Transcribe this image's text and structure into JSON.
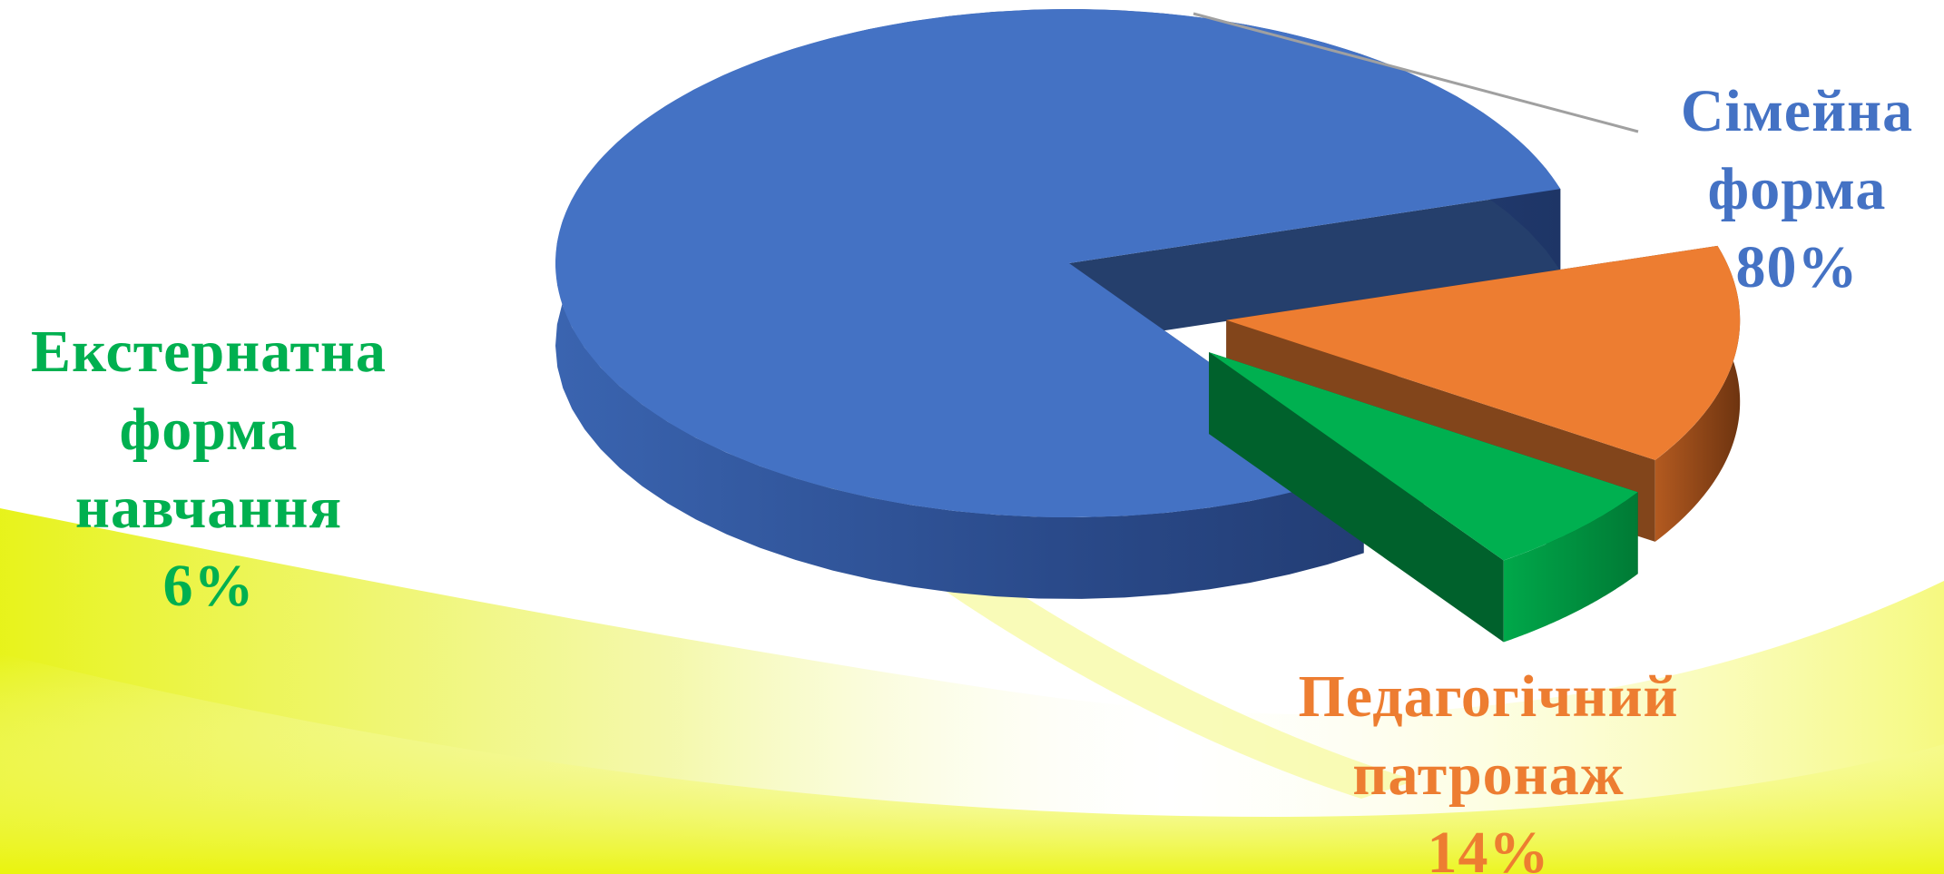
{
  "chart_data": {
    "type": "pie",
    "title": "",
    "series": [
      {
        "name": "",
        "slices": [
          {
            "label_lines": [
              "Сімейна",
              "форма"
            ],
            "percent_label": "80%",
            "value": 80,
            "color": "#4472c4"
          },
          {
            "label_lines": [
              "Педагогічний",
              "патронаж"
            ],
            "percent_label": "14%",
            "value": 14,
            "color": "#ed7d31"
          },
          {
            "label_lines": [
              "Екстернатна",
              "форма",
              "навчання"
            ],
            "percent_label": "6%",
            "value": 6,
            "color": "#00b050"
          }
        ]
      }
    ],
    "style": "3d-exploded",
    "legend": "none",
    "data_labels": "outside"
  },
  "colors": {
    "family": "#4472c4",
    "patronage": "#ed7d31",
    "external": "#00b050",
    "background_accent": "#e8f20a"
  }
}
